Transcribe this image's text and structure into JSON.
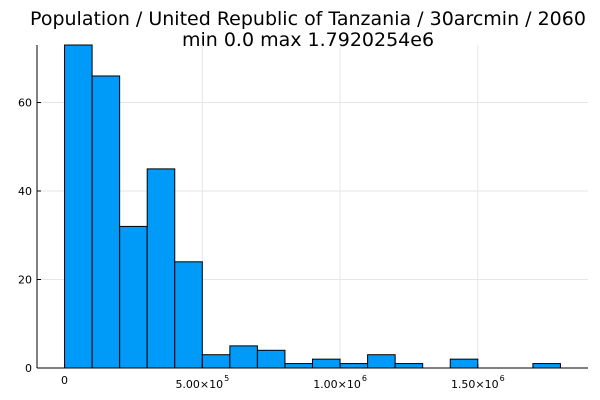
{
  "chart_data": {
    "type": "bar",
    "title": "Population / United Republic of Tanzania / 30arcmin / 2060",
    "subtitle": "min 0.0  max 1.7920254e6",
    "xlabel": "",
    "ylabel": "",
    "bin_width": 100000,
    "bins_start": [
      0,
      100000,
      200000,
      300000,
      400000,
      500000,
      600000,
      700000,
      800000,
      900000,
      1000000,
      1100000,
      1200000,
      1300000,
      1400000,
      1500000,
      1600000,
      1700000
    ],
    "values": [
      73,
      66,
      32,
      45,
      24,
      3,
      5,
      4,
      1,
      2,
      1,
      3,
      1,
      0,
      2,
      0,
      0,
      1
    ],
    "xlim": [
      -100000,
      1900000
    ],
    "ylim": [
      0,
      73
    ],
    "x_ticks": [
      {
        "value": 0,
        "mantissa": "0",
        "exp": ""
      },
      {
        "value": 500000,
        "mantissa": "5.00×10",
        "exp": "5"
      },
      {
        "value": 1000000,
        "mantissa": "1.00×10",
        "exp": "6"
      },
      {
        "value": 1500000,
        "mantissa": "1.50×10",
        "exp": "6"
      }
    ],
    "y_ticks": [
      0,
      20,
      40,
      60
    ],
    "grid": true,
    "legend": "none",
    "bar_color": "#009af9"
  }
}
